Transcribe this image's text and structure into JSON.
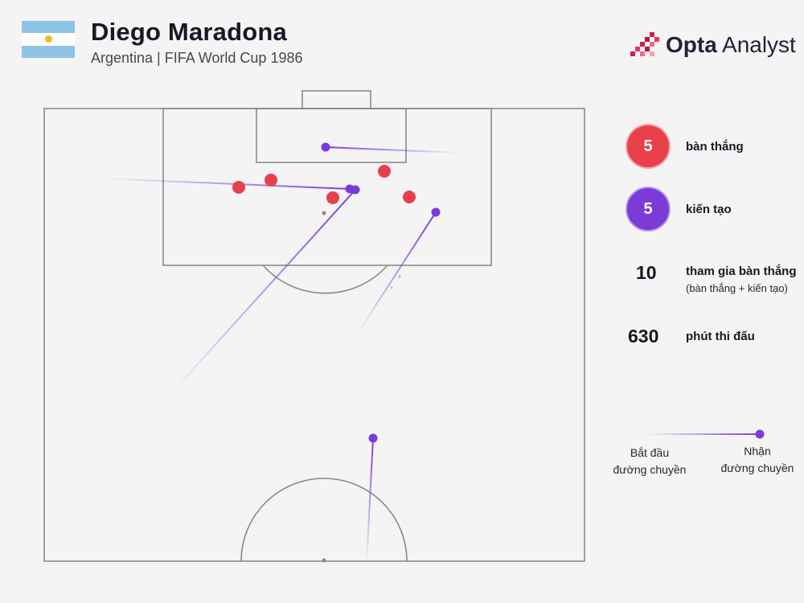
{
  "header": {
    "player_name": "Diego Maradona",
    "subtitle": "Argentina | FIFA World Cup 1986"
  },
  "brand": {
    "name_bold": "Opta",
    "name_light": " Analyst"
  },
  "colors": {
    "goal": "#e8404b",
    "assist": "#7a3bd8",
    "background": "#f4f4f4",
    "pitch_line": "#8a8a8a"
  },
  "stats": {
    "goals_value": "5",
    "goals_label": "bàn thắng",
    "assists_value": "5",
    "assists_label": "kiến tạo",
    "involvements_value": "10",
    "involvements_label": "tham gia bàn thắng",
    "involvements_sub": "(bàn thắng + kiến tạo)",
    "minutes_value": "630",
    "minutes_label": "phút thi đấu"
  },
  "legend": {
    "pass_start": [
      "Bắt đầu",
      "đường chuyền"
    ],
    "pass_receive": [
      "Nhận",
      "đường chuyền"
    ]
  }
}
